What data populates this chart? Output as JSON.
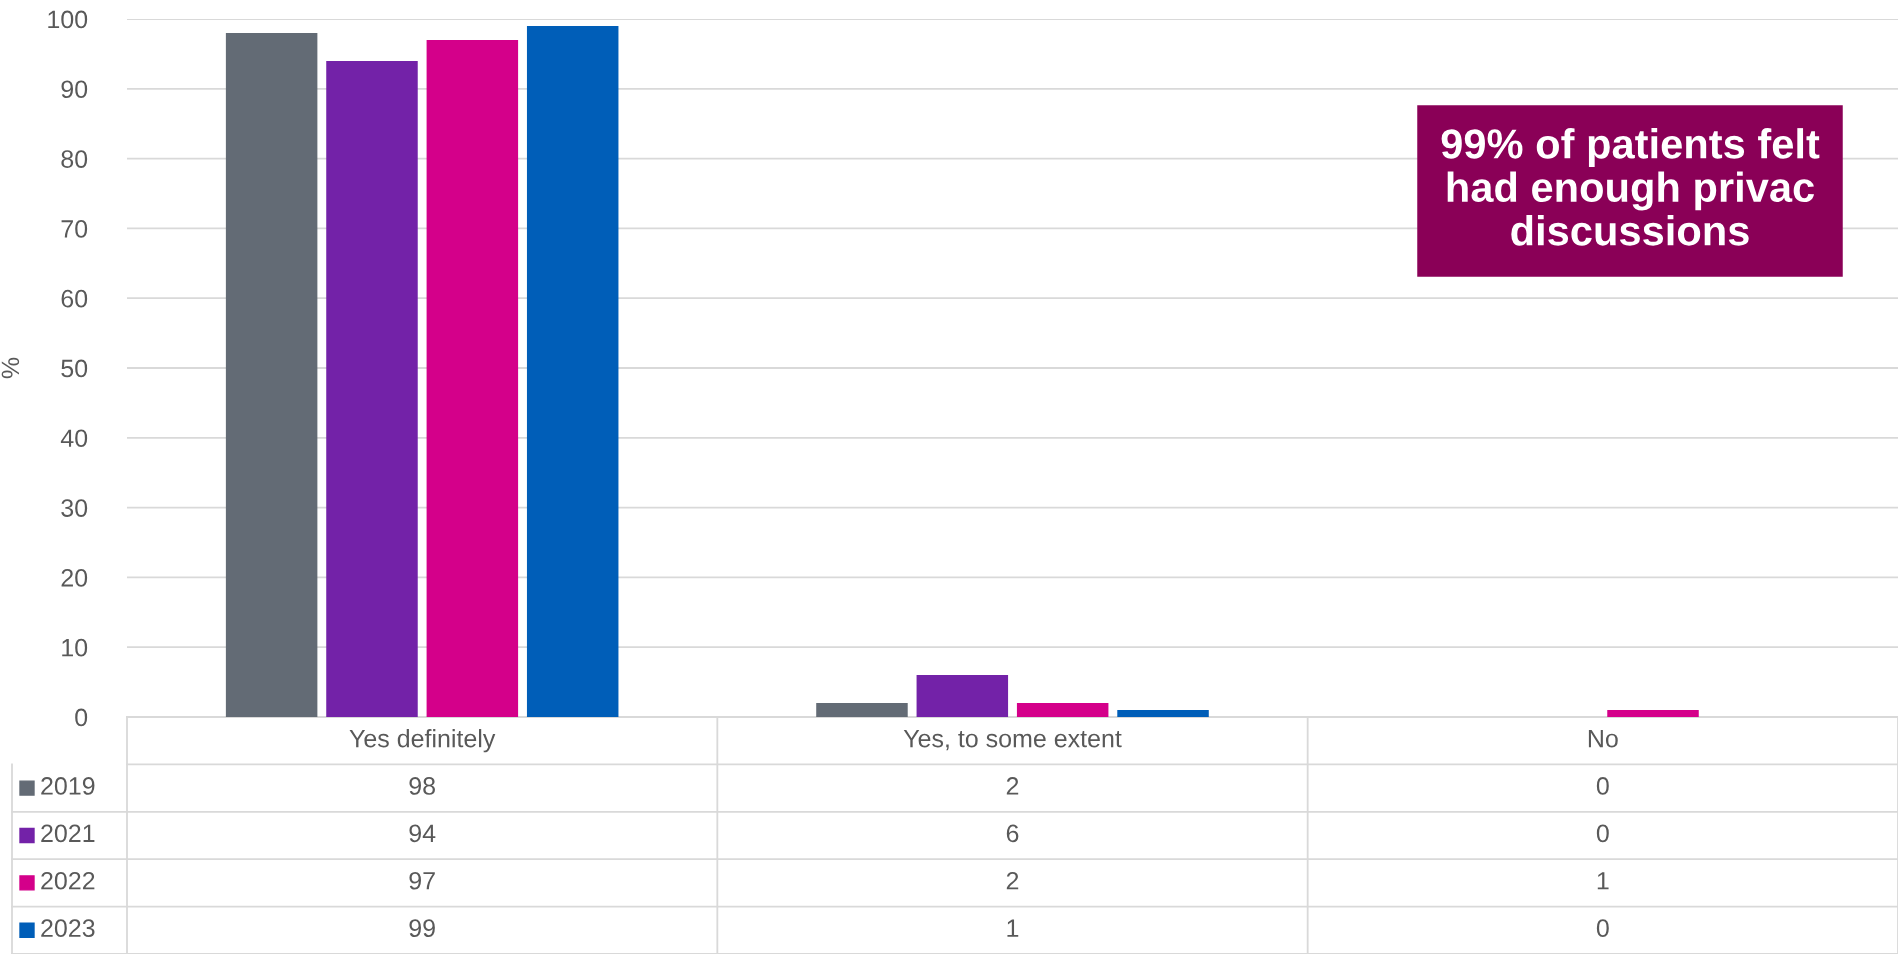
{
  "chart_data": {
    "type": "bar",
    "ylabel": "%",
    "categories": [
      "Yes definitely",
      "Yes, to some extent",
      "No"
    ],
    "series": [
      {
        "name": "2019",
        "color": "#636b75",
        "values": [
          98,
          2,
          0
        ]
      },
      {
        "name": "2021",
        "color": "#7322a8",
        "values": [
          94,
          6,
          0
        ]
      },
      {
        "name": "2022",
        "color": "#d4008a",
        "values": [
          97,
          2,
          1
        ]
      },
      {
        "name": "2023",
        "color": "#005eb8",
        "values": [
          99,
          1,
          0
        ]
      }
    ],
    "ylim": [
      0,
      100
    ],
    "yticks": [
      0,
      10,
      20,
      30,
      40,
      50,
      60,
      70,
      80,
      90,
      100
    ],
    "grid": "y",
    "legend": "bottom left",
    "data_labels": true,
    "annotations": [
      {
        "text": "99% of patients felt\nhad enough privac\ndiscussions"
      }
    ]
  }
}
